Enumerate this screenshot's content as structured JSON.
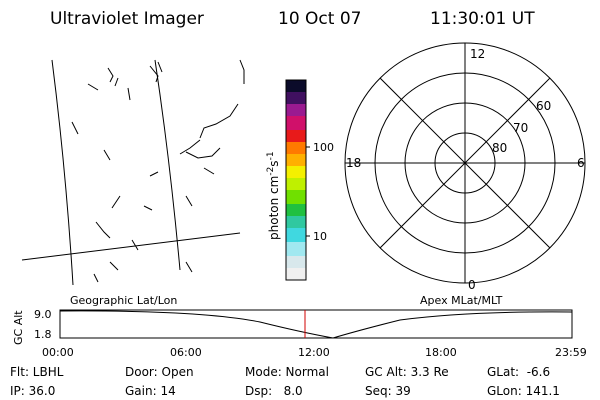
{
  "header": {
    "title": "Ultraviolet Imager",
    "date": "10 Oct 07",
    "time": "11:30:01 UT"
  },
  "colorbar": {
    "unit": "photon cm",
    "unit_exp1": "-2",
    "unit_mid": "s",
    "unit_exp2": "-1",
    "tick_labels": [
      "100",
      "10"
    ]
  },
  "polar": {
    "mlt_labels": [
      "12",
      "6",
      "0",
      "18"
    ],
    "lat_labels": [
      "60",
      "70",
      "80"
    ]
  },
  "timeline": {
    "left_label": "Geographic Lat/Lon",
    "right_label": "Apex MLat/MLT",
    "y_label": "GC Alt",
    "y_tick_labels": [
      "9.0",
      "1.8"
    ],
    "x_tick_labels": [
      "00:00",
      "06:00",
      "12:00",
      "18:00",
      "23:59"
    ]
  },
  "status": {
    "rows": [
      [
        "Flt: LBHL",
        "Door: Open",
        "Mode: Normal",
        "GC Alt: 3.3 Re",
        "GLat:  -6.6"
      ],
      [
        "IP: 36.0",
        "Gain: 14",
        "Dsp:   8.0",
        "Seq: 39",
        "GLon: 141.1"
      ]
    ]
  }
}
